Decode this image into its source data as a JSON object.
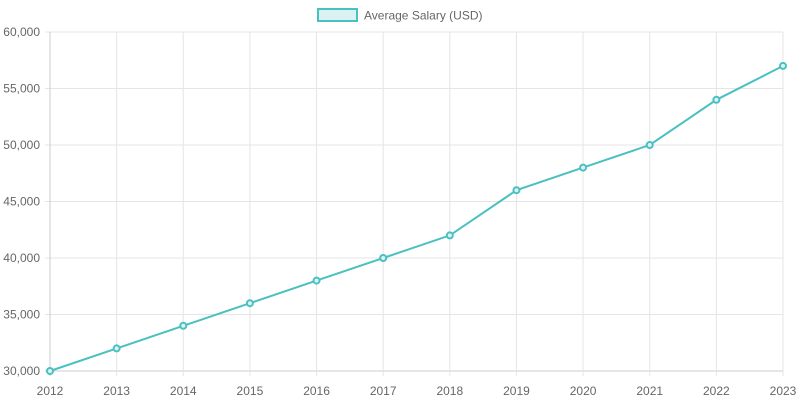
{
  "chart_data": {
    "type": "line",
    "x": [
      "2012",
      "2013",
      "2014",
      "2015",
      "2016",
      "2017",
      "2018",
      "2019",
      "2020",
      "2021",
      "2022",
      "2023"
    ],
    "series": [
      {
        "name": "Average Salary (USD)",
        "values": [
          30000,
          32000,
          34000,
          36000,
          38000,
          40000,
          42000,
          46000,
          48000,
          50000,
          54000,
          57000
        ]
      }
    ],
    "ylim": [
      30000,
      60000
    ],
    "y_ticks": [
      "30,000",
      "35,000",
      "40,000",
      "45,000",
      "50,000",
      "55,000",
      "60,000"
    ],
    "grid": true,
    "legend_position": "top-center",
    "colors": {
      "line": "#4bc0c0",
      "fill": "#dbf2f2",
      "grid": "#e5e5e5",
      "axis": "#cccccc",
      "text": "#666666"
    }
  }
}
